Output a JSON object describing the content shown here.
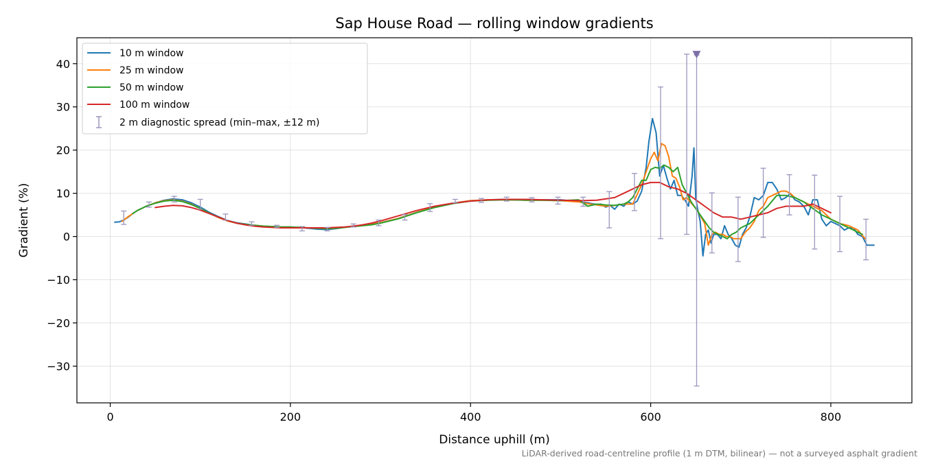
{
  "chart_data": {
    "type": "line",
    "title": "Sap House Road — rolling window gradients",
    "xlabel": "Distance uphill (m)",
    "ylabel": "Gradient (%)",
    "xlim": [
      -37,
      890
    ],
    "ylim": [
      -38.5,
      46
    ],
    "xticks": [
      0,
      200,
      400,
      600,
      800
    ],
    "yticks": [
      -30,
      -20,
      -10,
      0,
      10,
      20,
      30,
      40
    ],
    "ytick_labels": [
      "−30",
      "−20",
      "−10",
      "0",
      "10",
      "20",
      "30",
      "40"
    ],
    "grid": true,
    "legend_position": "top-left",
    "footnote": "LiDAR-derived road-centreline profile (1 m DTM, bilinear) — not a surveyed asphalt gradient",
    "series": [
      {
        "name": "10 m window",
        "color": "#1f77b4",
        "x": [
          5,
          10,
          15,
          20,
          25,
          30,
          40,
          50,
          60,
          70,
          80,
          90,
          100,
          110,
          120,
          130,
          140,
          150,
          160,
          170,
          180,
          190,
          200,
          210,
          220,
          230,
          240,
          250,
          260,
          270,
          280,
          290,
          300,
          320,
          340,
          360,
          380,
          400,
          420,
          440,
          460,
          480,
          500,
          510,
          520,
          530,
          540,
          545,
          550,
          555,
          560,
          565,
          570,
          575,
          580,
          585,
          590,
          595,
          598,
          602,
          606,
          610,
          614,
          618,
          622,
          626,
          630,
          634,
          638,
          642,
          646,
          648,
          650,
          652,
          655,
          658,
          661,
          664,
          667,
          670,
          674,
          678,
          682,
          686,
          690,
          694,
          698,
          702,
          706,
          710,
          715,
          720,
          725,
          730,
          735,
          740,
          745,
          750,
          755,
          760,
          765,
          770,
          775,
          780,
          785,
          790,
          795,
          800,
          805,
          810,
          815,
          820,
          825,
          830,
          835,
          840,
          845,
          848
        ],
        "values": [
          3.3,
          3.4,
          3.8,
          4.5,
          5.3,
          6.0,
          7.0,
          7.8,
          8.4,
          8.7,
          8.5,
          7.8,
          6.8,
          5.6,
          4.6,
          3.7,
          3.2,
          2.9,
          2.6,
          2.4,
          2.3,
          2.2,
          2.2,
          2.1,
          1.9,
          1.7,
          1.6,
          1.8,
          2.1,
          2.4,
          2.6,
          2.8,
          3.2,
          4.2,
          5.6,
          6.8,
          7.7,
          8.3,
          8.5,
          8.6,
          8.6,
          8.5,
          8.5,
          8.3,
          8.1,
          7.8,
          7.4,
          7.5,
          6.8,
          7.2,
          6.3,
          7.5,
          7.0,
          8.0,
          7.5,
          8.2,
          10.5,
          16.0,
          22.0,
          27.3,
          24.0,
          14.0,
          16.5,
          13.5,
          11.0,
          13.0,
          9.5,
          9.5,
          8.5,
          7.0,
          14.0,
          20.5,
          9.0,
          6.5,
          3.5,
          -4.5,
          0.5,
          1.5,
          -1.5,
          0.5,
          0.5,
          -0.5,
          2.5,
          0.5,
          -0.5,
          -2.0,
          -2.5,
          0.5,
          2.0,
          4.5,
          9.0,
          8.5,
          9.5,
          12.5,
          12.5,
          11.0,
          8.5,
          9.0,
          10.0,
          8.5,
          8.0,
          7.0,
          5.0,
          8.5,
          8.5,
          4.0,
          2.5,
          3.5,
          3.0,
          2.5,
          1.5,
          2.0,
          2.0,
          0.5,
          0.0,
          -2.0,
          -2.0,
          -2.0
        ]
      },
      {
        "name": "25 m window",
        "color": "#ff7f0e",
        "x": [
          13,
          20,
          25,
          30,
          40,
          50,
          60,
          70,
          80,
          90,
          100,
          110,
          120,
          130,
          140,
          150,
          160,
          170,
          180,
          190,
          200,
          210,
          220,
          230,
          240,
          250,
          260,
          270,
          280,
          290,
          300,
          320,
          340,
          360,
          380,
          400,
          420,
          440,
          460,
          480,
          500,
          520,
          530,
          540,
          550,
          560,
          570,
          580,
          590,
          595,
          600,
          604,
          608,
          612,
          616,
          620,
          624,
          628,
          632,
          636,
          640,
          644,
          648,
          652,
          656,
          660,
          664,
          668,
          672,
          676,
          680,
          684,
          688,
          692,
          696,
          700,
          705,
          710,
          715,
          720,
          725,
          730,
          735,
          740,
          745,
          750,
          755,
          760,
          765,
          770,
          775,
          780,
          785,
          790,
          795,
          800,
          810,
          820,
          830,
          838
        ],
        "values": [
          3.5,
          4.6,
          5.3,
          6.0,
          7.0,
          7.8,
          8.3,
          8.5,
          8.2,
          7.5,
          6.5,
          5.4,
          4.4,
          3.6,
          3.1,
          2.8,
          2.6,
          2.4,
          2.3,
          2.2,
          2.2,
          2.1,
          2.0,
          1.9,
          1.8,
          1.9,
          2.1,
          2.4,
          2.6,
          2.8,
          3.2,
          4.2,
          5.6,
          6.8,
          7.7,
          8.3,
          8.5,
          8.5,
          8.4,
          8.4,
          8.3,
          8.0,
          7.6,
          7.3,
          7.0,
          7.2,
          7.5,
          7.5,
          12.0,
          15.0,
          18.0,
          19.5,
          17.5,
          21.5,
          21.0,
          18.5,
          14.0,
          13.5,
          11.5,
          8.5,
          9.0,
          8.0,
          7.0,
          6.0,
          4.5,
          3.0,
          -2.0,
          0.5,
          1.0,
          0.5,
          0.5,
          0.0,
          0.0,
          -0.5,
          -0.5,
          -0.5,
          1.0,
          2.0,
          3.5,
          6.0,
          7.0,
          9.0,
          9.5,
          10.0,
          10.5,
          10.5,
          10.0,
          9.0,
          8.5,
          8.0,
          7.5,
          7.0,
          6.5,
          6.0,
          5.0,
          4.0,
          3.0,
          2.5,
          1.5,
          -0.5
        ]
      },
      {
        "name": "50 m window",
        "color": "#2ca02c",
        "x": [
          25,
          30,
          40,
          50,
          60,
          70,
          80,
          90,
          100,
          110,
          120,
          130,
          140,
          150,
          160,
          170,
          180,
          190,
          200,
          210,
          220,
          230,
          240,
          250,
          260,
          270,
          280,
          290,
          300,
          320,
          340,
          360,
          380,
          400,
          420,
          440,
          460,
          480,
          500,
          520,
          530,
          540,
          550,
          560,
          570,
          575,
          580,
          585,
          590,
          595,
          600,
          605,
          610,
          615,
          620,
          625,
          630,
          635,
          640,
          645,
          650,
          655,
          660,
          665,
          670,
          675,
          680,
          685,
          690,
          695,
          700,
          710,
          720,
          730,
          740,
          750,
          760,
          770,
          780,
          790,
          800,
          810,
          820,
          830,
          835
        ],
        "values": [
          5.3,
          6.0,
          7.0,
          7.7,
          8.2,
          8.4,
          8.1,
          7.4,
          6.5,
          5.4,
          4.5,
          3.7,
          3.1,
          2.8,
          2.6,
          2.4,
          2.3,
          2.2,
          2.2,
          2.1,
          2.0,
          1.9,
          1.8,
          1.9,
          2.1,
          2.3,
          2.5,
          2.7,
          3.1,
          4.1,
          5.5,
          6.7,
          7.6,
          8.2,
          8.4,
          8.5,
          8.4,
          8.4,
          8.3,
          8.5,
          7.0,
          7.5,
          7.3,
          7.2,
          7.5,
          8.0,
          9.0,
          11.0,
          13.0,
          13.0,
          15.5,
          16.0,
          15.8,
          16.5,
          16.0,
          15.0,
          16.0,
          12.0,
          10.0,
          8.0,
          6.5,
          5.0,
          3.5,
          2.0,
          1.0,
          0.5,
          0.0,
          -0.5,
          0.5,
          1.0,
          2.0,
          3.0,
          5.0,
          7.0,
          9.5,
          9.5,
          9.0,
          8.0,
          6.5,
          5.0,
          4.0,
          3.0,
          2.0,
          1.0,
          0.5
        ]
      },
      {
        "name": "100 m window",
        "color": "#d62728",
        "x": [
          50,
          60,
          70,
          80,
          90,
          100,
          110,
          120,
          130,
          140,
          150,
          160,
          170,
          180,
          190,
          200,
          210,
          220,
          230,
          240,
          250,
          260,
          270,
          280,
          290,
          300,
          320,
          340,
          360,
          380,
          400,
          420,
          440,
          460,
          480,
          500,
          520,
          540,
          560,
          570,
          580,
          590,
          600,
          610,
          620,
          630,
          640,
          650,
          660,
          670,
          680,
          690,
          700,
          710,
          720,
          730,
          740,
          750,
          760,
          770,
          780,
          790,
          800
        ],
        "values": [
          6.7,
          7.0,
          7.2,
          7.1,
          6.7,
          6.1,
          5.3,
          4.5,
          3.7,
          3.1,
          2.7,
          2.4,
          2.2,
          2.1,
          2.0,
          2.0,
          2.0,
          2.0,
          2.0,
          2.0,
          2.1,
          2.2,
          2.4,
          2.7,
          3.1,
          3.6,
          4.8,
          6.0,
          7.0,
          7.7,
          8.2,
          8.5,
          8.6,
          8.6,
          8.5,
          8.4,
          8.3,
          8.4,
          9.0,
          10.0,
          11.0,
          12.0,
          12.5,
          12.5,
          11.5,
          11.0,
          10.0,
          8.5,
          7.0,
          5.5,
          4.5,
          4.5,
          4.0,
          4.5,
          5.0,
          5.5,
          6.5,
          7.0,
          7.0,
          7.0,
          7.5,
          6.5,
          5.5
        ]
      }
    ],
    "errorbars": {
      "name": "2 m diagnostic spread (min–max, ±12 m)",
      "color": "#9a96bd",
      "x": [
        15,
        43,
        71,
        100,
        128,
        157,
        185,
        213,
        241,
        270,
        298,
        327,
        355,
        383,
        412,
        440,
        468,
        497,
        525,
        554,
        582,
        611,
        640,
        651,
        668,
        697,
        725,
        754,
        782,
        810,
        839
      ],
      "min": [
        2.8,
        6.8,
        8.0,
        6.3,
        3.8,
        2.6,
        2.1,
        1.3,
        1.3,
        2.2,
        2.5,
        3.8,
        5.8,
        7.8,
        7.9,
        8.2,
        8.0,
        7.5,
        7.0,
        2.0,
        6.0,
        -0.5,
        0.5,
        -34.6,
        -3.8,
        -5.8,
        -0.2,
        5.0,
        -2.9,
        -3.5,
        -5.4
      ],
      "max": [
        5.9,
        8.0,
        9.3,
        8.6,
        5.2,
        3.4,
        2.6,
        2.3,
        2.1,
        2.9,
        3.8,
        5.1,
        7.6,
        8.6,
        8.8,
        9.1,
        9.0,
        9.1,
        9.1,
        10.4,
        14.6,
        34.6,
        42.2,
        42.0,
        10.1,
        9.1,
        15.8,
        14.3,
        14.2,
        9.3,
        4.0
      ],
      "clipped_marker": {
        "x": 651,
        "y": 42.0
      }
    }
  }
}
